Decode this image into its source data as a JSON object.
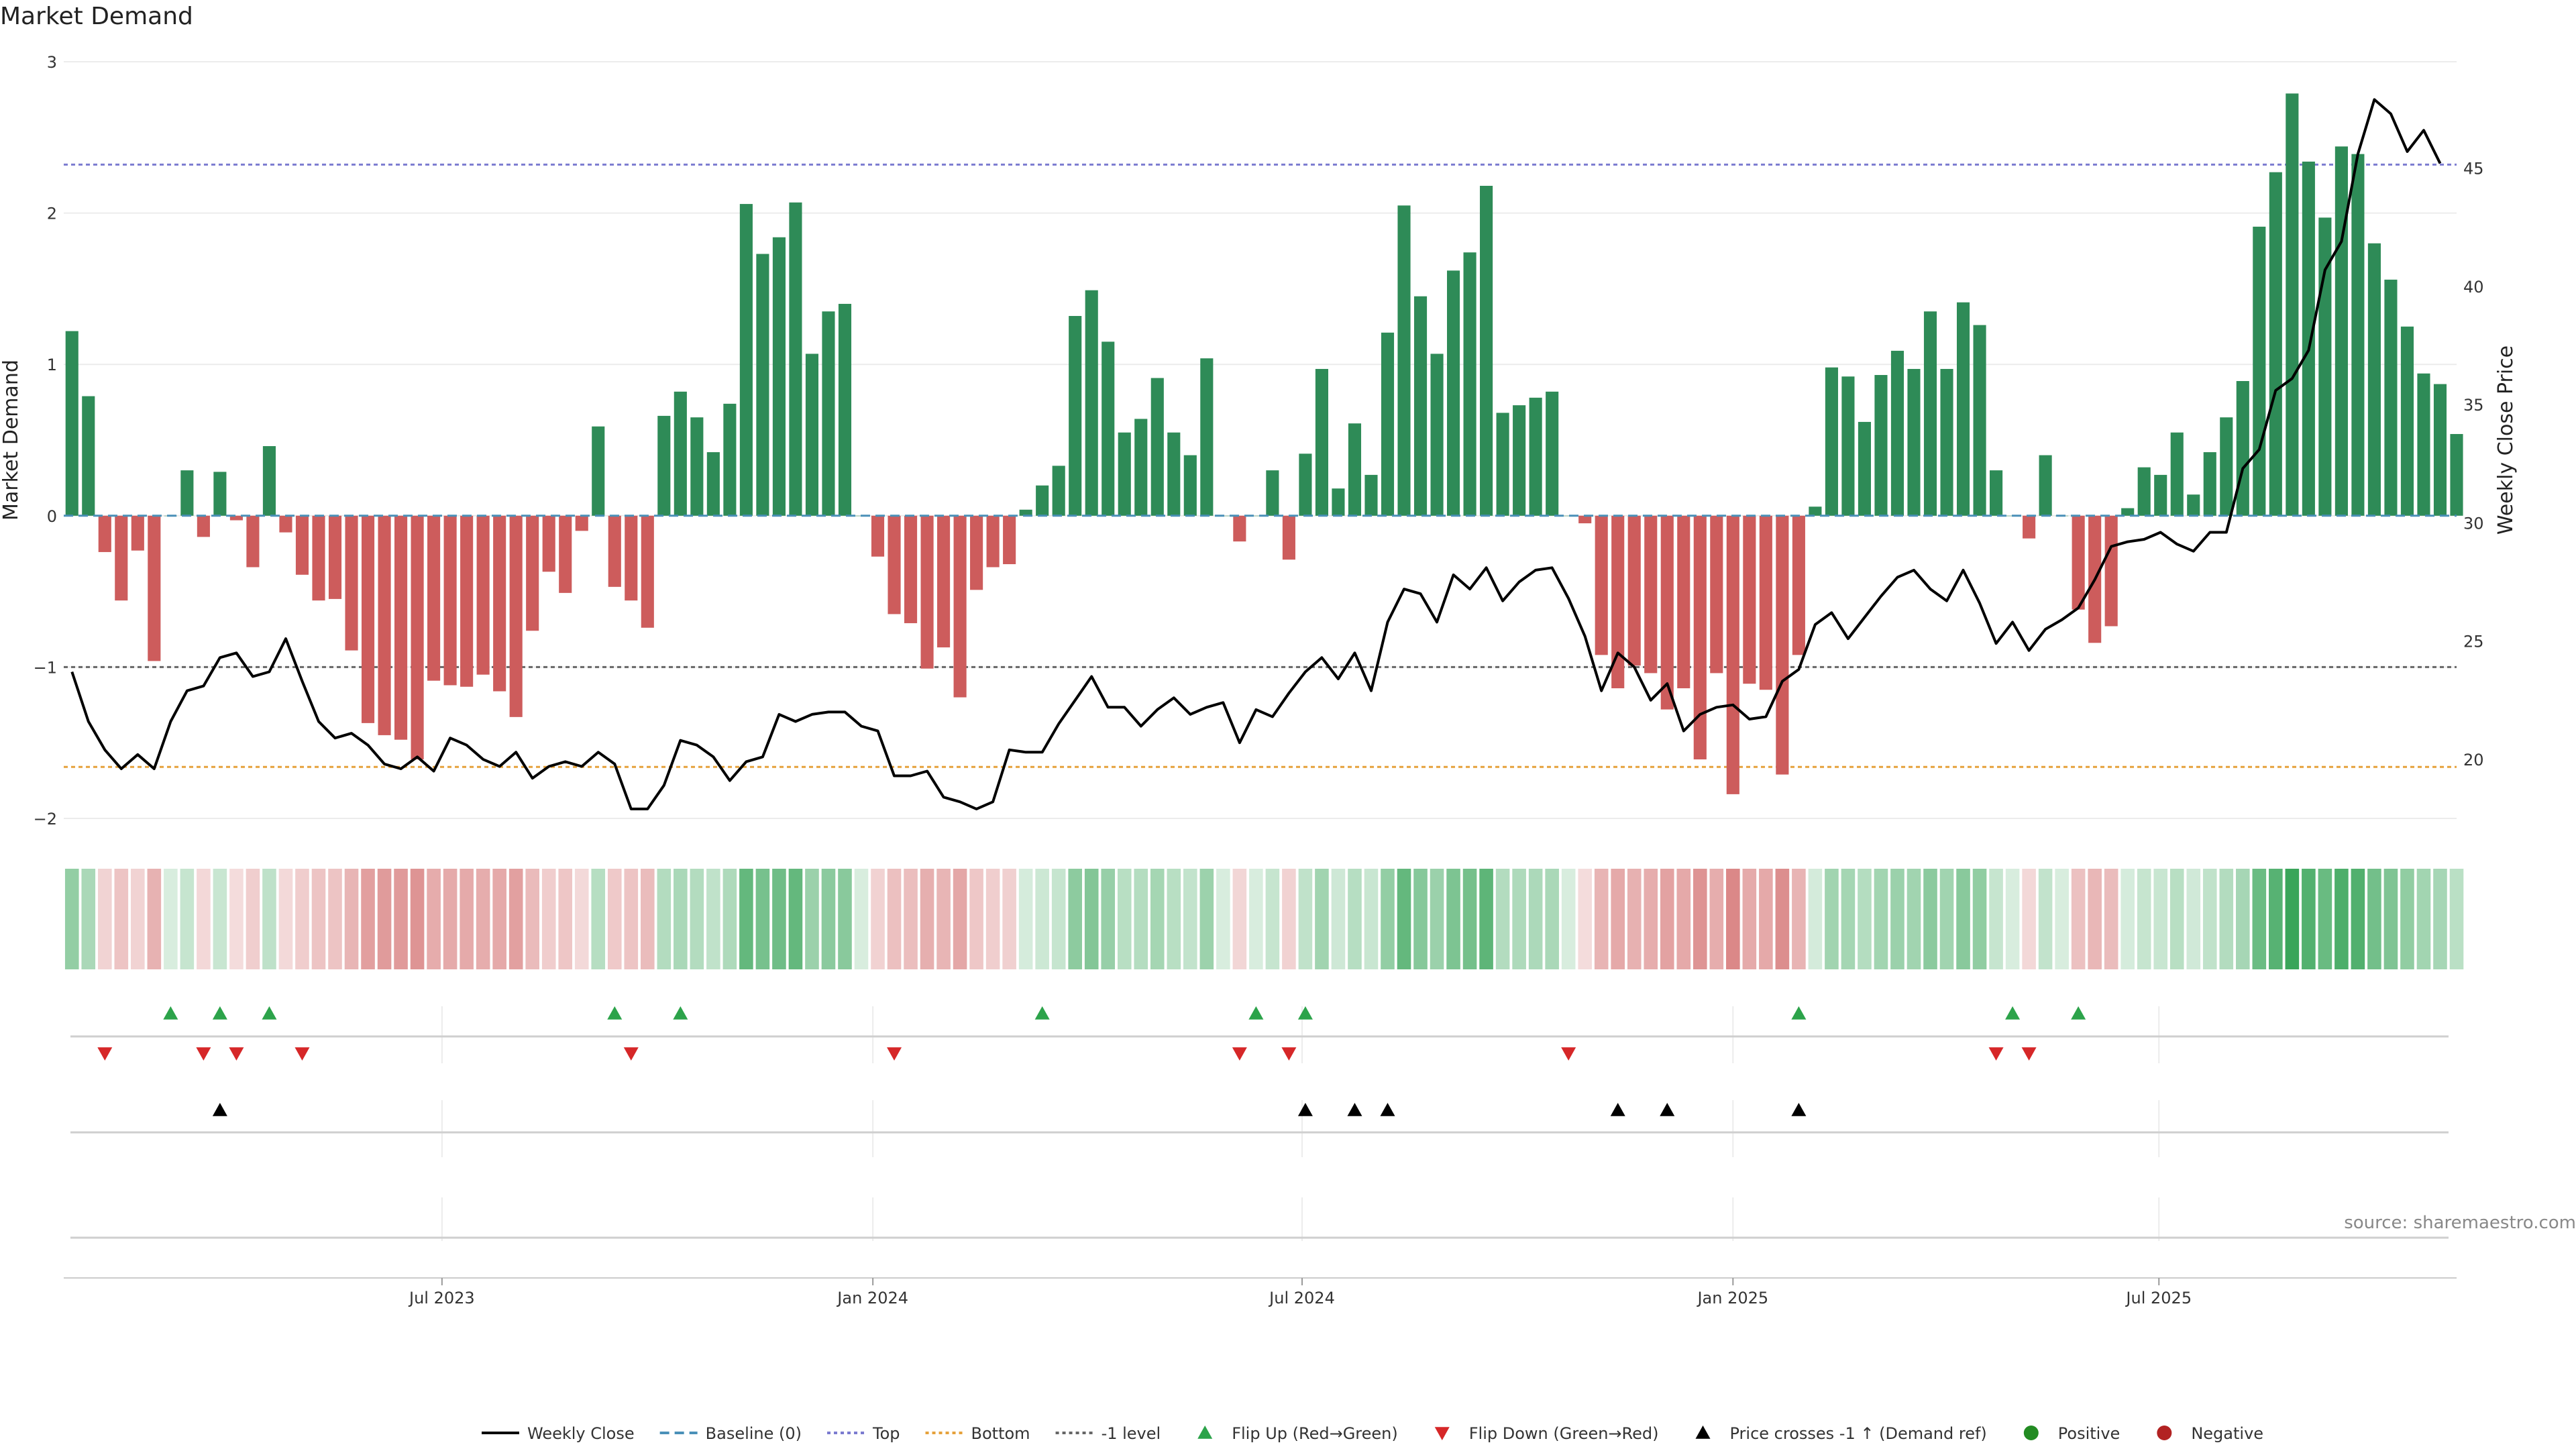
{
  "title": "Market Demand",
  "source": "source: sharemaestro.com",
  "colors": {
    "positive_bar": "#2e8b57",
    "negative_bar": "#cd5c5c",
    "price_line": "#000000",
    "top_line": "#7b7bd0",
    "bottom_line": "#e6a23c",
    "minus1_line": "#666666",
    "baseline": "#4a90b8",
    "flip_up": "#2ca34a",
    "flip_down": "#d62728",
    "cross": "#000000",
    "positive_dot": "#228b22",
    "negative_dot": "#b22222"
  },
  "chart_data": {
    "type": "bar",
    "title": "Market Demand",
    "ylabel": "Market Demand",
    "y2label": "Weekly Close Price",
    "ylim": [
      -2,
      3
    ],
    "y2lim": [
      17.5,
      49.5
    ],
    "yticks": [
      "3",
      "2",
      "1",
      "0",
      "−1",
      "−2"
    ],
    "y2ticks": [
      "45",
      "40",
      "35",
      "30",
      "25",
      "20"
    ],
    "xticks": [
      {
        "label": "Jul 2023",
        "week": 22.5
      },
      {
        "label": "Jan 2024",
        "week": 48.7
      },
      {
        "label": "Jul 2024",
        "week": 74.8
      },
      {
        "label": "Jan 2025",
        "week": 101.0
      },
      {
        "label": "Jul 2025",
        "week": 126.9
      }
    ],
    "reference_lines": {
      "top": 2.32,
      "bottom": -1.66,
      "minus1": -1.0,
      "baseline": 0
    },
    "demand": [
      1.22,
      0.79,
      -0.24,
      -0.56,
      -0.23,
      -0.96,
      0.0,
      0.3,
      -0.14,
      0.29,
      -0.03,
      -0.34,
      0.46,
      -0.11,
      -0.39,
      -0.56,
      -0.55,
      -0.89,
      -1.37,
      -1.45,
      -1.48,
      -1.61,
      -1.09,
      -1.12,
      -1.13,
      -1.05,
      -1.16,
      -1.33,
      -0.76,
      -0.37,
      -0.51,
      -0.1,
      0.59,
      -0.47,
      -0.56,
      -0.74,
      0.66,
      0.82,
      0.65,
      0.42,
      0.74,
      2.06,
      1.73,
      1.84,
      2.07,
      1.07,
      1.35,
      1.4,
      0.0,
      -0.27,
      -0.65,
      -0.71,
      -1.01,
      -0.87,
      -1.2,
      -0.49,
      -0.34,
      -0.32,
      0.04,
      0.2,
      0.33,
      1.32,
      1.49,
      1.15,
      0.55,
      0.64,
      0.91,
      0.55,
      0.4,
      1.04,
      0.0,
      -0.17,
      0.0,
      0.3,
      -0.29,
      0.41,
      0.97,
      0.18,
      0.61,
      0.27,
      1.21,
      2.05,
      1.45,
      1.07,
      1.62,
      1.74,
      2.18,
      0.68,
      0.73,
      0.78,
      0.82,
      0.0,
      -0.05,
      -0.92,
      -1.14,
      -0.99,
      -1.04,
      -1.28,
      -1.14,
      -1.61,
      -1.04,
      -1.84,
      -1.11,
      -1.15,
      -1.71,
      -0.92,
      0.06,
      0.98,
      0.92,
      0.62,
      0.93,
      1.09,
      0.97,
      1.35,
      0.97,
      1.41,
      1.26,
      0.3,
      0.0,
      -0.15,
      0.4,
      0.0,
      -0.62,
      -0.84,
      -0.73,
      0.05,
      0.32,
      0.27,
      0.55,
      0.14,
      0.42,
      0.65,
      0.89,
      1.91,
      2.27,
      2.79,
      2.34,
      1.97,
      2.44,
      2.39,
      1.8,
      1.56,
      1.25,
      0.94,
      0.87,
      0.54
    ],
    "price": [
      23.7,
      21.6,
      20.4,
      19.6,
      20.2,
      19.6,
      21.6,
      22.9,
      23.1,
      24.3,
      24.5,
      23.5,
      23.7,
      25.1,
      23.3,
      21.6,
      20.9,
      21.1,
      20.6,
      19.8,
      19.6,
      20.1,
      19.5,
      20.9,
      20.6,
      20.0,
      19.7,
      20.3,
      19.2,
      19.7,
      19.9,
      19.7,
      20.3,
      19.8,
      17.9,
      17.9,
      18.9,
      20.8,
      20.6,
      20.1,
      19.1,
      19.9,
      20.1,
      21.9,
      21.6,
      21.9,
      22.0,
      22.0,
      21.4,
      21.2,
      19.3,
      19.3,
      19.5,
      18.4,
      18.2,
      17.9,
      18.2,
      20.4,
      20.3,
      20.3,
      21.5,
      22.5,
      23.5,
      22.2,
      22.2,
      21.4,
      22.1,
      22.6,
      21.9,
      22.2,
      22.4,
      20.7,
      22.1,
      21.8,
      22.8,
      23.7,
      24.3,
      23.4,
      24.5,
      22.9,
      25.8,
      27.2,
      27.0,
      25.8,
      27.8,
      27.2,
      28.1,
      26.7,
      27.5,
      28.0,
      28.1,
      26.8,
      25.2,
      22.9,
      24.5,
      23.9,
      22.5,
      23.2,
      21.2,
      21.9,
      22.2,
      22.3,
      21.7,
      21.8,
      23.3,
      23.8,
      25.7,
      26.2,
      25.1,
      26.0,
      26.9,
      27.7,
      28.0,
      27.2,
      26.7,
      28.0,
      26.6,
      24.9,
      25.8,
      24.6,
      25.5,
      25.9,
      26.4,
      27.6,
      29.0,
      29.2,
      29.3,
      29.6,
      29.1,
      28.8,
      29.6,
      29.6,
      32.3,
      33.1,
      35.6,
      36.1,
      37.3,
      40.7,
      41.9,
      45.6,
      47.9,
      47.3,
      45.7,
      46.6,
      45.2
    ],
    "flip_up_weeks": [
      6,
      9,
      12,
      33,
      37,
      59,
      72,
      75,
      105,
      118,
      122
    ],
    "flip_down_weeks": [
      2,
      8,
      10,
      14,
      34,
      50,
      71,
      74,
      91,
      117,
      119
    ],
    "cross_up_weeks": [
      9,
      75,
      78,
      80,
      94,
      97,
      105
    ],
    "series_labels": {
      "price": "Weekly Close",
      "baseline": "Baseline (0)",
      "top": "Top",
      "bottom": "Bottom",
      "minus1": "-1 level",
      "flip_up": "Flip Up (Red→Green)",
      "flip_down": "Flip Down (Green→Red)",
      "cross": "Price crosses -1 ↑ (Demand ref)",
      "positive": "Positive",
      "negative": "Negative"
    }
  }
}
